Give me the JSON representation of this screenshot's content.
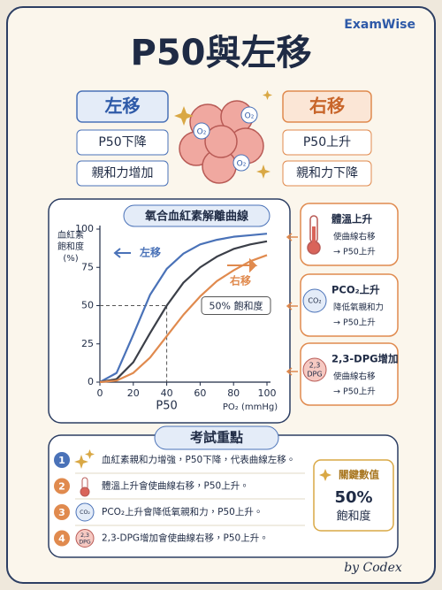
{
  "brand": "ExamWise",
  "title": "P50與左移",
  "left_panel": {
    "title": "左移",
    "items": [
      "P50下降",
      "親和力增加"
    ]
  },
  "right_panel": {
    "title": "右移",
    "items": [
      "P50上升",
      "親和力下降"
    ]
  },
  "molecule_labels": [
    "O₂",
    "O₂",
    "O₂"
  ],
  "chart_data": {
    "type": "line",
    "title": "氧合血紅素解離曲線",
    "y_label": [
      "血紅素",
      "飽和度",
      "(%)"
    ],
    "x_label": "PO₂ (mmHg)",
    "x": [
      0,
      10,
      20,
      30,
      40,
      50,
      60,
      70,
      80,
      90,
      100
    ],
    "series": [
      {
        "name": "左移",
        "color": "#4a72b8",
        "values": [
          0,
          6,
          31,
          57,
          74,
          84,
          90,
          93,
          95,
          96,
          97
        ]
      },
      {
        "color": "#3b3f48",
        "values": [
          0,
          2,
          13,
          32,
          50,
          65,
          75,
          82,
          87,
          90,
          92
        ]
      },
      {
        "name": "右移",
        "color": "#e08a4e",
        "values": [
          0,
          1,
          6,
          16,
          30,
          44,
          56,
          66,
          73,
          79,
          83
        ]
      }
    ],
    "xlim": [
      0,
      100
    ],
    "ylim": [
      0,
      100
    ],
    "xticks": [
      0,
      20,
      40,
      60,
      80,
      100
    ],
    "yticks": [
      0,
      25,
      50,
      75,
      100
    ],
    "grid": false,
    "reference_lines": {
      "x": 40,
      "x_label": "P50",
      "y": 50,
      "y_label": "50% 飽和度"
    }
  },
  "factors": [
    {
      "title": "體溫上升",
      "lines": [
        "使曲線右移",
        "→ P50上升"
      ]
    },
    {
      "icon": [
        "CO₂"
      ],
      "title": "PCO₂上升",
      "lines": [
        "降低氧親和力",
        "→ P50上升"
      ]
    },
    {
      "icon": [
        "2,3",
        "DPG"
      ],
      "title": "2,3-DPG增加",
      "lines": [
        "使曲線右移",
        "→ P50上升"
      ]
    }
  ],
  "key_points": {
    "title": "考試重點",
    "items": [
      {
        "number": "1",
        "text": "血紅素親和力增強，P50下降，代表曲線左移。"
      },
      {
        "number": "2",
        "text": "體溫上升會使曲線右移，P50上升。"
      },
      {
        "number": "3",
        "icon": [
          "CO₂"
        ],
        "text": "PCO₂上升會降低氧親和力，P50上升。"
      },
      {
        "number": "4",
        "icon": [
          "2,3",
          "DPG"
        ],
        "text": "2,3-DPG增加會使曲線右移，P50上升。"
      }
    ]
  },
  "key_value": {
    "title": "關鍵數值",
    "value": "50%",
    "label": "飽和度"
  },
  "signature": "by Codex"
}
